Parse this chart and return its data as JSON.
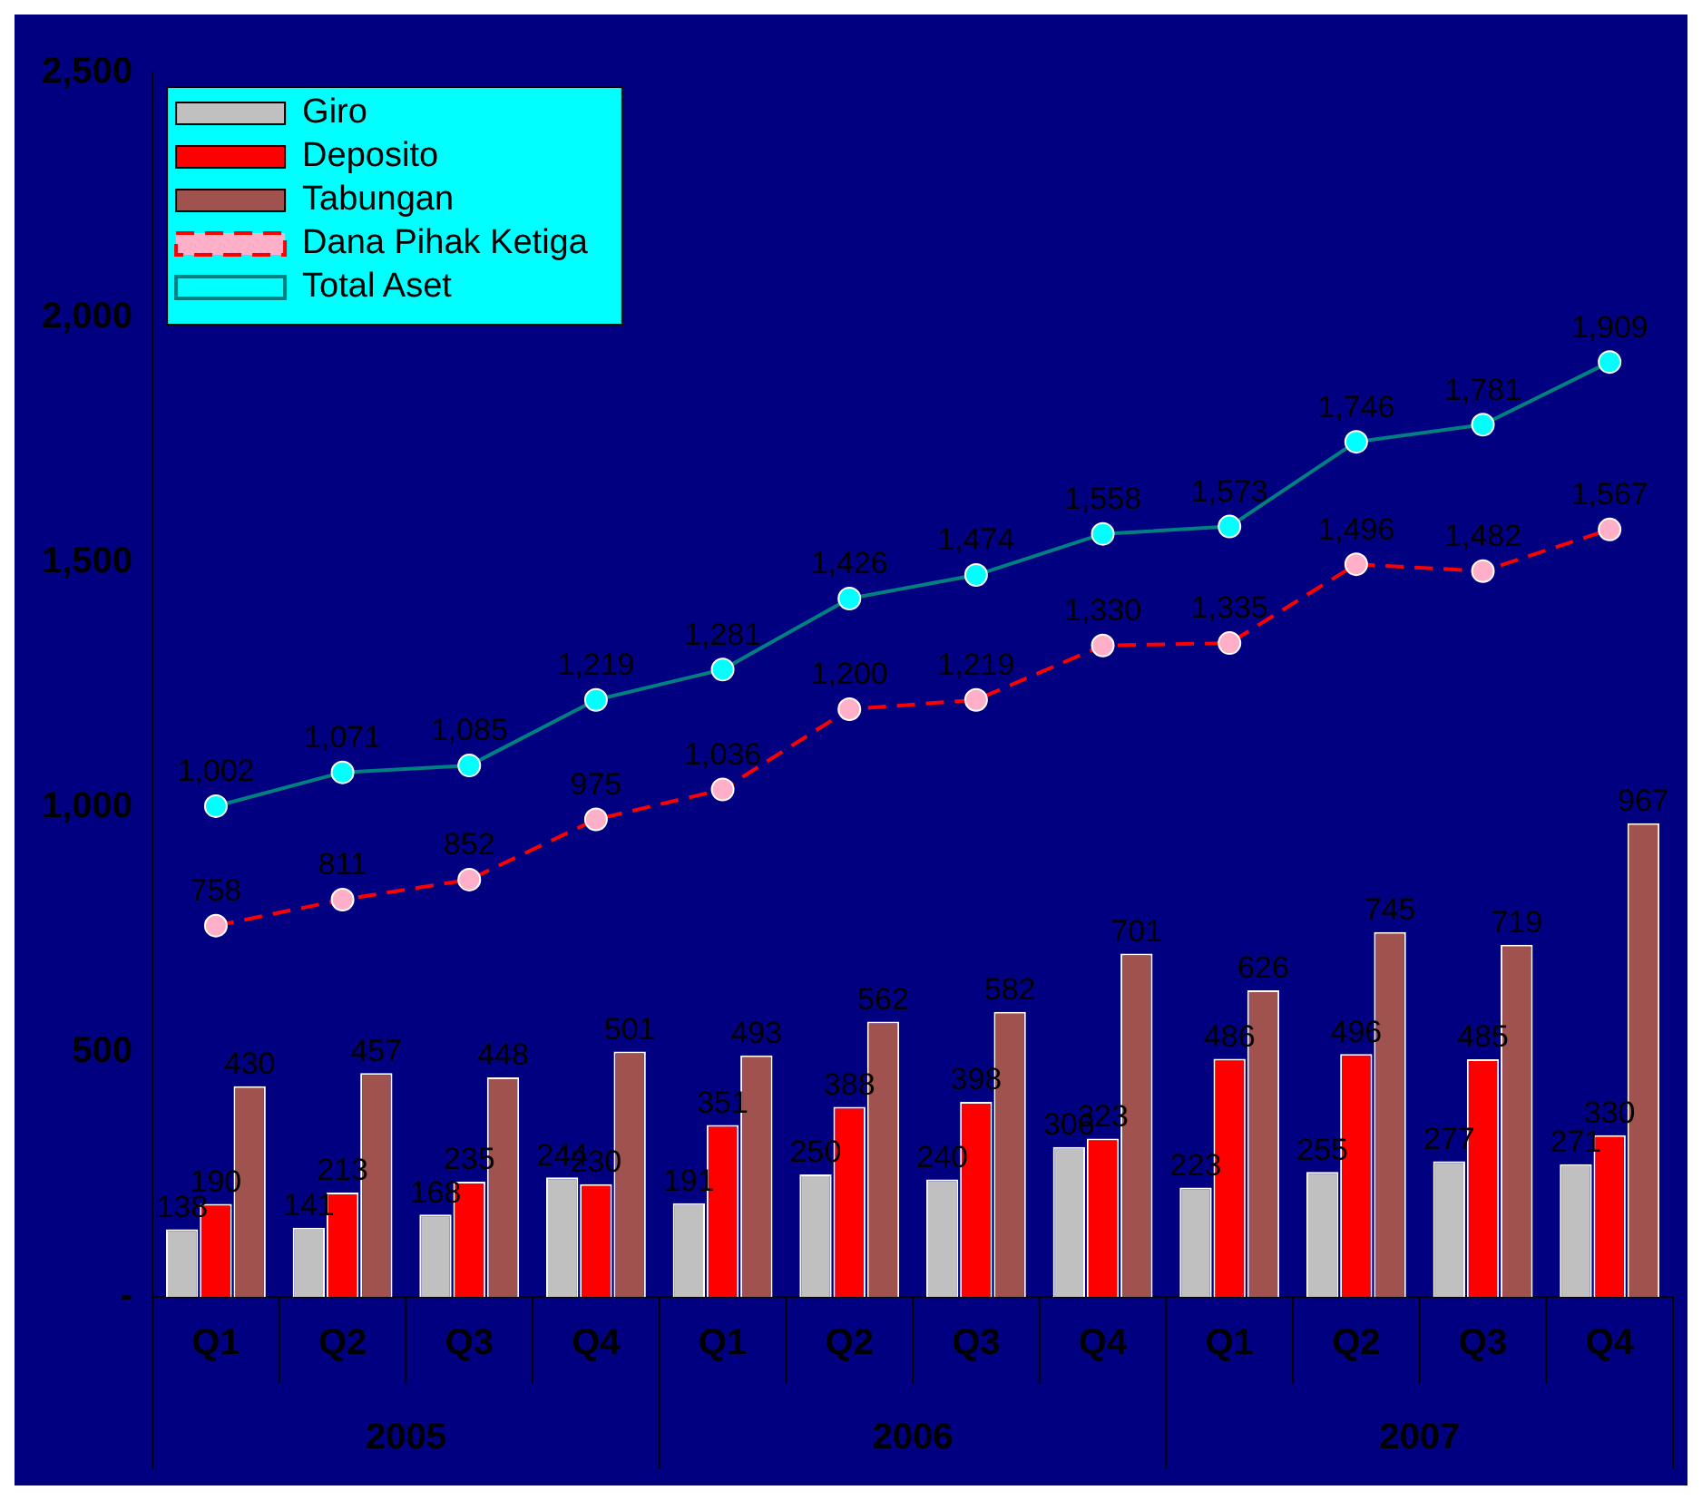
{
  "chart_data": {
    "type": "bar",
    "categories": [
      "Q1",
      "Q2",
      "Q3",
      "Q4",
      "Q1",
      "Q2",
      "Q3",
      "Q4",
      "Q1",
      "Q2",
      "Q3",
      "Q4"
    ],
    "annotations": [
      "2005",
      "2006",
      "2007"
    ],
    "series": [
      {
        "name": "Giro",
        "color": "#c0c0c0",
        "values": [
          138,
          141,
          168,
          244,
          191,
          250,
          240,
          306,
          223,
          255,
          277,
          271
        ],
        "value_labels": [
          "138",
          "141",
          "168",
          "244",
          "191",
          "250",
          "240",
          "306",
          "223",
          "255",
          "277",
          "271"
        ]
      },
      {
        "name": "Deposito",
        "color": "#ff0000",
        "values": [
          190,
          213,
          235,
          230,
          351,
          388,
          398,
          323,
          486,
          496,
          485,
          330
        ],
        "value_labels": [
          "190",
          "213",
          "235",
          "230",
          "351",
          "388",
          "398",
          "323",
          "486",
          "496",
          "485",
          "330"
        ]
      },
      {
        "name": "Tabungan",
        "color": "#a0524f",
        "values": [
          430,
          457,
          448,
          501,
          493,
          562,
          582,
          701,
          626,
          745,
          719,
          967
        ],
        "value_labels": [
          "430",
          "457",
          "448",
          "501",
          "493",
          "562",
          "582",
          "701",
          "626",
          "745",
          "719",
          "967"
        ]
      },
      {
        "name": "Dana Pihak Ketiga",
        "type": "line",
        "color": "#ff0000",
        "line_style": "dashed",
        "values": [
          758,
          811,
          852,
          975,
          1036,
          1200,
          1219,
          1330,
          1335,
          1496,
          1482,
          1567
        ],
        "value_labels": [
          "758",
          "811",
          "852",
          "975",
          "1,036",
          "1,200",
          "1,219",
          "1,330",
          "1,335",
          "1,496",
          "1,482",
          "1,567"
        ]
      },
      {
        "name": "Total Aset",
        "type": "line",
        "color": "#008080",
        "line_style": "solid",
        "values": [
          1002,
          1071,
          1085,
          1219,
          1281,
          1426,
          1474,
          1558,
          1573,
          1746,
          1781,
          1909
        ],
        "value_labels": [
          "1,002",
          "1,071",
          "1,085",
          "1,219",
          "1,281",
          "1,426",
          "1,474",
          "1,558",
          "1,573",
          "1,746",
          "1,781",
          "1,909"
        ]
      }
    ],
    "ylim": [
      0,
      2500
    ],
    "yticks": [
      {
        "value": 0,
        "label": "-"
      },
      {
        "value": 500,
        "label": "500"
      },
      {
        "value": 1000,
        "label": "1,000"
      },
      {
        "value": 1500,
        "label": "1,500"
      },
      {
        "value": 2000,
        "label": "2,000"
      },
      {
        "value": 2500,
        "label": "2,500"
      }
    ],
    "grid": false,
    "legend": "top left",
    "marker": "circle"
  }
}
